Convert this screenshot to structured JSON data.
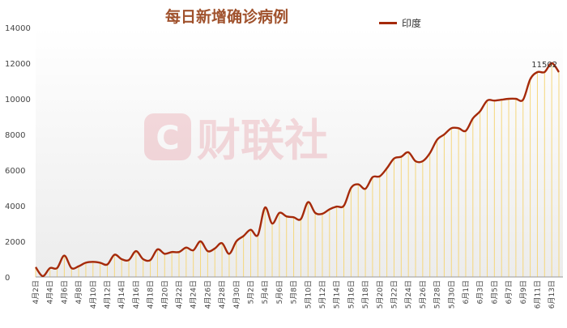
{
  "chart_data": {
    "type": "line",
    "title": "每日新增确诊病例",
    "series_name": "印度",
    "ylim": [
      0,
      14000
    ],
    "y_ticks": [
      0,
      2000,
      4000,
      6000,
      8000,
      10000,
      12000,
      14000
    ],
    "x_tick_labels": [
      "4月2日",
      "4月4日",
      "4月6日",
      "4月8日",
      "4月10日",
      "4月12日",
      "4月14日",
      "4月16日",
      "4月18日",
      "4月20日",
      "4月22日",
      "4月24日",
      "4月26日",
      "4月28日",
      "4月30日",
      "5月2日",
      "5月4日",
      "5月6日",
      "5月8日",
      "5月10日",
      "5月12日",
      "5月14日",
      "5月16日",
      "5月18日",
      "5月20日",
      "5月22日",
      "5月24日",
      "5月26日",
      "5月28日",
      "5月30日",
      "6月1日",
      "6月3日",
      "6月5日",
      "6月7日",
      "6月9日",
      "6月11日",
      "6月13日"
    ],
    "x": [
      "4月2日",
      "4月3日",
      "4月4日",
      "4月5日",
      "4月6日",
      "4月7日",
      "4月8日",
      "4月9日",
      "4月10日",
      "4月11日",
      "4月12日",
      "4月13日",
      "4月14日",
      "4月15日",
      "4月16日",
      "4月17日",
      "4月18日",
      "4月19日",
      "4月20日",
      "4月21日",
      "4月22日",
      "4月23日",
      "4月24日",
      "4月25日",
      "4月26日",
      "4月27日",
      "4月28日",
      "4月29日",
      "4月30日",
      "5月1日",
      "5月2日",
      "5月3日",
      "5月4日",
      "5月5日",
      "5月6日",
      "5月7日",
      "5月8日",
      "5月9日",
      "5月10日",
      "5月11日",
      "5月12日",
      "5月13日",
      "5月14日",
      "5月15日",
      "5月16日",
      "5月17日",
      "5月18日",
      "5月19日",
      "5月20日",
      "5月21日",
      "5月22日",
      "5月23日",
      "5月24日",
      "5月25日",
      "5月26日",
      "5月27日",
      "5月28日",
      "5月29日",
      "5月30日",
      "5月31日",
      "6月1日",
      "6月2日",
      "6月3日",
      "6月4日",
      "6月5日",
      "6月6日",
      "6月7日",
      "6月8日",
      "6月9日",
      "6月10日",
      "6月11日",
      "6月12日",
      "6月13日",
      "6月14日"
    ],
    "values": [
      550,
      50,
      500,
      500,
      1200,
      500,
      600,
      800,
      850,
      800,
      700,
      1250,
      1000,
      950,
      1450,
      1000,
      950,
      1550,
      1300,
      1400,
      1400,
      1650,
      1500,
      2000,
      1450,
      1600,
      1900,
      1300,
      2000,
      2300,
      2650,
      2350,
      3900,
      3000,
      3600,
      3400,
      3350,
      3250,
      4200,
      3600,
      3550,
      3800,
      3950,
      4000,
      5000,
      5200,
      4950,
      5600,
      5650,
      6100,
      6650,
      6750,
      7000,
      6500,
      6500,
      6950,
      7700,
      8000,
      8350,
      8350,
      8200,
      8900,
      9300,
      9900,
      9900,
      9950,
      10000,
      10000,
      9950,
      11100,
      11500,
      11502,
      12000,
      11500
    ],
    "data_labels": [
      {
        "index": 71,
        "text": "11502"
      }
    ],
    "grid": false,
    "legend": "top-right",
    "colors": {
      "line": "#a52a0a",
      "drop_lines": "#f5d77c",
      "title": "#a0522d"
    },
    "watermark": "财联社"
  }
}
